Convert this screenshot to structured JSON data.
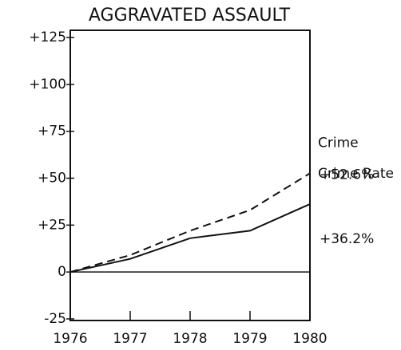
{
  "chart_data": {
    "type": "line",
    "title": "AGGRAVATED ASSAULT",
    "x": [
      1976,
      1977,
      1978,
      1979,
      1980
    ],
    "xlim": [
      1976,
      1980
    ],
    "xticks": [
      1976,
      1977,
      1978,
      1979,
      1980
    ],
    "ylim": [
      -25,
      125
    ],
    "yticks": [
      {
        "value": -25,
        "label": "-25"
      },
      0,
      {
        "value": 25,
        "label": "+25"
      },
      {
        "value": 50,
        "label": "+50"
      },
      {
        "value": 75,
        "label": "+75"
      },
      {
        "value": 100,
        "label": "+100"
      },
      {
        "value": 125,
        "label": "+125"
      }
    ],
    "series": [
      {
        "name": "Crime",
        "color": "#111111",
        "dash": true,
        "values": [
          0,
          9,
          22,
          33,
          52.6
        ],
        "value_labels": [
          null,
          null,
          null,
          null,
          "+52.6%"
        ]
      },
      {
        "name": "Crime Rate",
        "color": "#111111",
        "dash": false,
        "values": [
          0,
          7,
          18,
          22,
          36.2
        ],
        "value_labels": [
          null,
          null,
          null,
          null,
          "+36.2%"
        ]
      }
    ]
  }
}
